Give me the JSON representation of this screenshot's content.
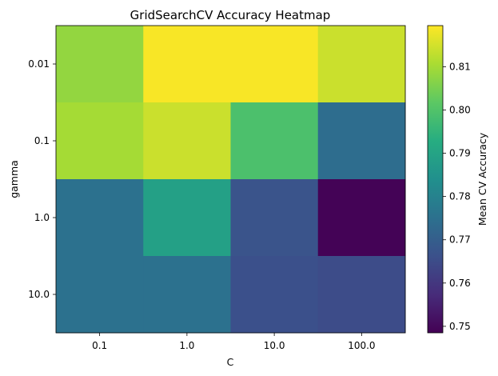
{
  "chart_data": {
    "type": "heatmap",
    "title": "GridSearchCV Accuracy Heatmap",
    "xlabel": "C",
    "ylabel": "gamma",
    "x_categories": [
      "0.1",
      "1.0",
      "10.0",
      "100.0"
    ],
    "y_categories": [
      "0.01",
      "0.1",
      "1.0",
      "10.0"
    ],
    "values": [
      [
        0.808,
        0.819,
        0.819,
        0.814
      ],
      [
        0.81,
        0.814,
        0.799,
        0.774
      ],
      [
        0.775,
        0.789,
        0.767,
        0.749
      ],
      [
        0.775,
        0.775,
        0.766,
        0.765
      ]
    ],
    "colormap": "viridis",
    "vmin": 0.7485,
    "vmax": 0.8195,
    "colorbar": {
      "label": "Mean CV Accuracy",
      "ticks": [
        "0.75",
        "0.76",
        "0.77",
        "0.78",
        "0.79",
        "0.80",
        "0.81"
      ],
      "tick_values": [
        0.75,
        0.76,
        0.77,
        0.78,
        0.79,
        0.8,
        0.81
      ]
    }
  }
}
